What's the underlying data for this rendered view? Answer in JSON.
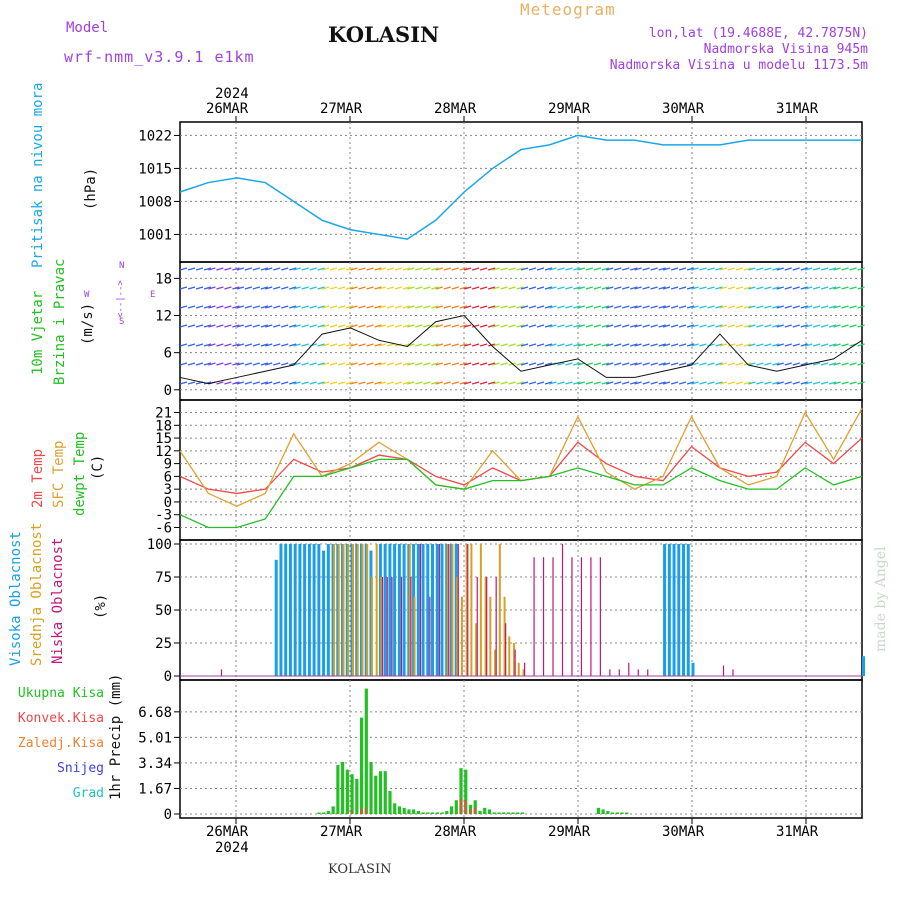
{
  "header": {
    "model_label": "Model",
    "model_name": "wrf-nmm_v3.9.1 e1km",
    "title": "KOLASIN",
    "meteogram_label": "Meteogram",
    "lonlat": "lon,lat (19.4688E, 42.7875N)",
    "altitude": "Nadmorska Visina 945m",
    "model_altitude": "Nadmorska Visina u modelu 1173.5m",
    "footer_station": "KOLASIN",
    "watermark": "made by Angel"
  },
  "colors": {
    "pressure": "#1aa7e6",
    "temp2m": "#f04848",
    "sfc_temp": "#e0a030",
    "dewpoint": "#22c022",
    "cloud_high": "#1a9ee8",
    "cloud_mid": "#d8a020",
    "cloud_low": "#c01878",
    "precip_total": "#22c022",
    "precip_conv": "#f04848",
    "purple": "#a040e0",
    "orange_title": "#e8b060"
  },
  "time_axis": {
    "year": "2024",
    "labels": [
      "26MAR",
      "27MAR",
      "28MAR",
      "29MAR",
      "30MAR",
      "31MAR"
    ]
  },
  "panels": {
    "pressure": {
      "ylabel": "Pritisak na nivou mora",
      "unit": "(hPa)"
    },
    "wind": {
      "ylabel_1": "10m Vjetar",
      "ylabel_2": "Brzina i Pravac",
      "unit": "(m/s)",
      "compass_n": "N",
      "compass_s": "S",
      "compass_w": "W",
      "compass_e": "E",
      "compass_mid": "<--|-->"
    },
    "temp": {
      "ylabel_1": "2m Temp",
      "ylabel_2": "SFC Temp",
      "ylabel_3": "dewpt Temp",
      "unit": "(C)"
    },
    "cloud": {
      "ylabel_1": "Visoka Oblacnost",
      "ylabel_2": "Srednja Oblacnost",
      "ylabel_3": "Niska Oblacnost",
      "unit": "(%)"
    },
    "precip": {
      "ylabel": "1hr Precip (mm)",
      "legend": [
        "Ukupna Kisa",
        "Konvek.Kisa",
        "Zaledj.Kisa",
        "Snijeg",
        "Grad"
      ],
      "legend_colors": [
        "#22c022",
        "#f04848",
        "#f08030",
        "#4040e0",
        "#20c0c0"
      ]
    }
  },
  "chart_data": [
    {
      "type": "line",
      "title": "Pritisak na nivou mora",
      "ylabel": "(hPa)",
      "ylim": [
        996,
        1024
      ],
      "yticks": [
        "1001",
        "1008",
        "1015",
        "1022"
      ],
      "x_hours": [
        0,
        6,
        12,
        18,
        24,
        30,
        36,
        42,
        48,
        54,
        60,
        66,
        72,
        78,
        84,
        90,
        96,
        102,
        108,
        114,
        120,
        126,
        132,
        138,
        144
      ],
      "values": [
        1010,
        1012,
        1013,
        1012,
        1008,
        1004,
        1002,
        1001,
        1000,
        1004,
        1010,
        1015,
        1019,
        1020,
        1022,
        1021,
        1021,
        1020,
        1020,
        1020,
        1021,
        1021,
        1021,
        1021,
        1021
      ],
      "grid": true
    },
    {
      "type": "line",
      "title": "10m Vjetar Brzina i Pravac",
      "ylabel": "(m/s)",
      "ylim": [
        -1,
        20
      ],
      "yticks": [
        "0",
        "6",
        "12",
        "18"
      ],
      "x_hours": [
        0,
        6,
        12,
        18,
        24,
        30,
        36,
        42,
        48,
        54,
        60,
        66,
        72,
        78,
        84,
        90,
        96,
        102,
        108,
        114,
        120,
        126,
        132,
        138,
        144
      ],
      "values": [
        2,
        1,
        2,
        3,
        4,
        9,
        10,
        8,
        7,
        11,
        12,
        7,
        3,
        4,
        5,
        2,
        2,
        3,
        4,
        9,
        4,
        3,
        4,
        5,
        8
      ],
      "grid": true
    },
    {
      "type": "line",
      "title": "2m Temp / SFC Temp / dewpt Temp",
      "ylabel": "(C)",
      "ylim": [
        -8,
        23
      ],
      "yticks": [
        "-6",
        "-3",
        "0",
        "3",
        "6",
        "9",
        "12",
        "15",
        "18",
        "21"
      ],
      "x_hours": [
        0,
        6,
        12,
        18,
        24,
        30,
        36,
        42,
        48,
        54,
        60,
        66,
        72,
        78,
        84,
        90,
        96,
        102,
        108,
        114,
        120,
        126,
        132,
        138,
        144
      ],
      "series": [
        {
          "name": "2m Temp",
          "values": [
            6,
            3,
            2,
            3,
            10,
            7,
            8,
            11,
            10,
            6,
            4,
            8,
            5,
            6,
            14,
            9,
            6,
            5,
            13,
            8,
            6,
            7,
            14,
            9,
            15
          ]
        },
        {
          "name": "SFC Temp",
          "values": [
            12,
            2,
            -1,
            2,
            16,
            6,
            9,
            14,
            10,
            4,
            3,
            12,
            5,
            6,
            20,
            7,
            3,
            6,
            20,
            8,
            4,
            6,
            21,
            10,
            22
          ]
        },
        {
          "name": "dewpt Temp",
          "values": [
            -3,
            -6,
            -6,
            -4,
            6,
            6,
            8,
            10,
            10,
            4,
            3,
            5,
            5,
            6,
            8,
            6,
            4,
            4,
            8,
            5,
            3,
            3,
            8,
            4,
            6
          ]
        }
      ],
      "grid": true
    },
    {
      "type": "bar",
      "title": "Visoka / Srednja / Niska Oblacnost",
      "ylabel": "(%)",
      "ylim": [
        0,
        100
      ],
      "yticks": [
        "0",
        "25",
        "50",
        "75",
        "100"
      ],
      "series": [
        {
          "name": "Visoka Oblacnost",
          "x_hours": [
            20,
            21,
            22,
            23,
            24,
            25,
            26,
            27,
            28,
            29,
            30,
            31,
            32,
            33,
            34,
            35,
            36,
            37,
            38,
            39,
            40,
            42,
            43,
            44,
            45,
            46,
            47,
            48,
            49,
            50,
            51,
            52,
            53,
            54,
            55,
            56,
            57,
            58,
            102,
            103,
            104,
            105,
            106,
            107,
            108,
            144
          ],
          "values": [
            88,
            100,
            100,
            100,
            100,
            100,
            100,
            100,
            100,
            100,
            95,
            100,
            100,
            100,
            100,
            100,
            100,
            100,
            100,
            100,
            95,
            100,
            100,
            100,
            100,
            100,
            100,
            100,
            100,
            100,
            100,
            100,
            100,
            100,
            100,
            100,
            100,
            100,
            100,
            100,
            100,
            100,
            100,
            100,
            10,
            15
          ]
        },
        {
          "name": "Srednja Oblacnost",
          "x_hours": [
            32,
            33,
            34,
            35,
            36,
            37,
            38,
            39,
            40,
            41,
            42,
            48,
            49,
            56,
            57,
            58,
            59,
            60,
            61,
            62,
            63,
            64,
            65,
            66,
            67,
            68,
            69,
            70,
            71,
            72
          ],
          "values": [
            100,
            100,
            100,
            100,
            100,
            100,
            100,
            100,
            75,
            100,
            75,
            100,
            60,
            100,
            100,
            75,
            60,
            100,
            100,
            40,
            100,
            75,
            60,
            20,
            100,
            60,
            30,
            25,
            10,
            5
          ]
        },
        {
          "name": "Niska Oblacnost",
          "x_hours": [
            8,
            42,
            43,
            44,
            46,
            48,
            50,
            52,
            54,
            56,
            58,
            60,
            62,
            64,
            66,
            68,
            70,
            72,
            74,
            76,
            78,
            80,
            82,
            84,
            86,
            88,
            90,
            92,
            94,
            96,
            98,
            114,
            116
          ],
          "values": [
            5,
            75,
            75,
            75,
            75,
            75,
            100,
            60,
            100,
            100,
            100,
            100,
            75,
            75,
            75,
            40,
            20,
            10,
            90,
            90,
            90,
            100,
            90,
            90,
            90,
            90,
            5,
            5,
            10,
            5,
            5,
            8,
            5
          ]
        }
      ],
      "grid": true
    },
    {
      "type": "bar",
      "title": "1hr Precip",
      "ylabel": "1hr Precip (mm)",
      "ylim": [
        0,
        8.5
      ],
      "yticks": [
        "0",
        "1.67",
        "3.34",
        "5.01",
        "6.68"
      ],
      "series": [
        {
          "name": "Ukupna Kisa",
          "x_hours": [
            29,
            30,
            31,
            32,
            33,
            34,
            35,
            36,
            37,
            38,
            39,
            40,
            41,
            42,
            43,
            44,
            45,
            46,
            47,
            48,
            49,
            50,
            51,
            52,
            53,
            54,
            55,
            56,
            57,
            58,
            59,
            60,
            61,
            62,
            63,
            64,
            65,
            66,
            67,
            68,
            69,
            70,
            71,
            72,
            88,
            89,
            90,
            91,
            92,
            93,
            94
          ],
          "values": [
            0.1,
            0.1,
            0.2,
            0.5,
            3.2,
            3.4,
            2.9,
            2.6,
            2.3,
            6.3,
            8.2,
            3.4,
            2.5,
            2.8,
            2.8,
            1.5,
            0.7,
            0.5,
            0.4,
            0.3,
            0.3,
            0.2,
            0.1,
            0.1,
            0.1,
            0.1,
            0.1,
            0.2,
            0.5,
            0.9,
            3.0,
            2.9,
            0.6,
            0.9,
            0.2,
            0.4,
            0.3,
            0.1,
            0.1,
            0.1,
            0.1,
            0.1,
            0.1,
            0.1,
            0.4,
            0.3,
            0.2,
            0.1,
            0.1,
            0.1,
            0.1
          ]
        },
        {
          "name": "Konvek.Kisa",
          "x_hours": [
            36,
            38,
            39,
            59,
            60,
            61,
            62
          ],
          "values": [
            0.2,
            0.3,
            0.4,
            1.0,
            0.9,
            0.3,
            0.4
          ]
        }
      ],
      "grid": true
    }
  ]
}
